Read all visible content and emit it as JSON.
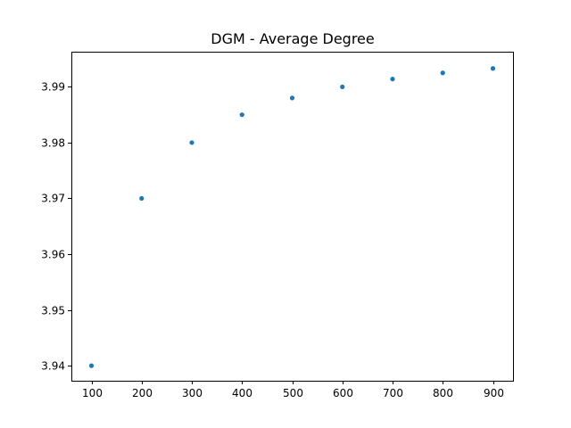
{
  "chart_data": {
    "type": "scatter",
    "title": "DGM - Average Degree",
    "xlabel": "",
    "ylabel": "",
    "x": [
      100,
      200,
      300,
      400,
      500,
      600,
      700,
      800,
      900
    ],
    "series": [
      {
        "values": [
          3.94,
          3.97,
          3.98,
          3.985,
          3.988,
          3.99,
          3.9914,
          3.9925,
          3.9933
        ]
      }
    ],
    "xlim": [
      60,
      940
    ],
    "ylim": [
      3.9373,
      3.9963
    ],
    "xticks": [
      100,
      200,
      300,
      400,
      500,
      600,
      700,
      800,
      900
    ],
    "xtick_labels": [
      "100",
      "200",
      "300",
      "400",
      "500",
      "600",
      "700",
      "800",
      "900"
    ],
    "yticks": [
      3.94,
      3.95,
      3.96,
      3.97,
      3.98,
      3.99
    ],
    "ytick_labels": [
      "3.94",
      "3.95",
      "3.96",
      "3.97",
      "3.98",
      "3.99"
    ],
    "grid": false,
    "legend": "none",
    "colors": {
      "marker": "#1f77b4",
      "axes": "#000000",
      "background": "#ffffff"
    }
  }
}
